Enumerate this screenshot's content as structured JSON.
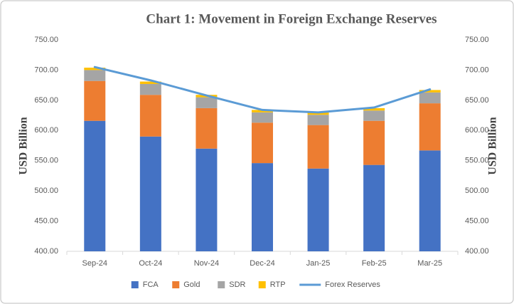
{
  "chart_data": {
    "type": "bar",
    "title": "Chart 1: Movement in Foreign Exchange Reserves",
    "ylabel": "USD Billion",
    "y2label": "USD Billion",
    "categories": [
      "Sep-24",
      "Oct-24",
      "Nov-24",
      "Dec-24",
      "Jan-25",
      "Feb-25",
      "Mar-25"
    ],
    "series": [
      {
        "name": "FCA",
        "color": "#4472c4",
        "stacked": true,
        "values": [
          616,
          590,
          570,
          546,
          537,
          543,
          567
        ]
      },
      {
        "name": "Gold",
        "color": "#ed7d31",
        "stacked": true,
        "values": [
          66,
          69,
          67,
          67,
          72,
          73,
          78
        ]
      },
      {
        "name": "SDR",
        "color": "#a5a5a5",
        "stacked": true,
        "values": [
          18,
          18,
          18,
          17,
          17,
          17,
          18
        ]
      },
      {
        "name": "RTP",
        "color": "#ffc000",
        "stacked": true,
        "values": [
          4,
          4,
          4,
          4,
          4,
          4,
          4
        ]
      },
      {
        "name": "Forex Reserves",
        "color": "#5b9bd5",
        "type": "line",
        "axis": "y2",
        "values": [
          705,
          683,
          658,
          634,
          630,
          638,
          668
        ]
      }
    ],
    "ylim": [
      400,
      750
    ],
    "yticks": [
      {
        "value": 400,
        "label": "400.00"
      },
      {
        "value": 450,
        "label": "450.00"
      },
      {
        "value": 500,
        "label": "500.00"
      },
      {
        "value": 550,
        "label": "550.00"
      },
      {
        "value": 600,
        "label": "600.00"
      },
      {
        "value": 650,
        "label": "650.00"
      },
      {
        "value": 700,
        "label": "700.00"
      },
      {
        "value": 750,
        "label": "750.00"
      }
    ],
    "y2lim": [
      400,
      750
    ],
    "y2ticks": [
      {
        "value": 400,
        "label": "400.00"
      },
      {
        "value": 450,
        "label": "450.00"
      },
      {
        "value": 500,
        "label": "500.00"
      },
      {
        "value": 550,
        "label": "550.00"
      },
      {
        "value": 600,
        "label": "600.00"
      },
      {
        "value": 650,
        "label": "650.00"
      },
      {
        "value": 700,
        "label": "700.00"
      },
      {
        "value": 750,
        "label": "750.00"
      }
    ],
    "grid": false,
    "legend": "bottom"
  }
}
